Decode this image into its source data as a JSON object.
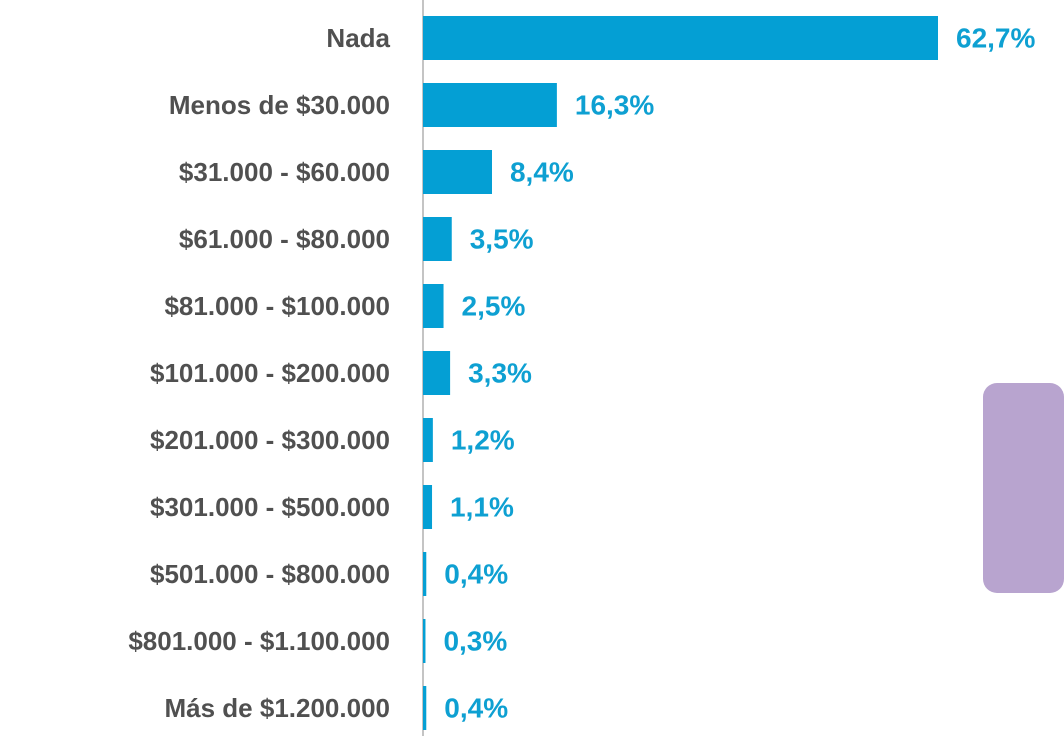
{
  "chart_data": {
    "type": "bar",
    "orientation": "horizontal",
    "color": "#049fd4",
    "categories": [
      "Nada",
      "Menos de $30.000",
      "$31.000 - $60.000",
      "$61.000 - $80.000",
      "$81.000 - $100.000",
      "$101.000 - $200.000",
      "$201.000 - $300.000",
      "$301.000 - $500.000",
      "$501.000 - $800.000",
      "$801.000 - $1.100.000",
      "Más de $1.200.000"
    ],
    "values": [
      62.7,
      16.3,
      8.4,
      3.5,
      2.5,
      3.3,
      1.2,
      1.1,
      0.4,
      0.3,
      0.4
    ],
    "value_labels": [
      "62,7%",
      "16,3%",
      "8,4%",
      "3,5%",
      "2,5%",
      "3,3%",
      "1,2%",
      "1,1%",
      "0,4%",
      "0,3%",
      "0,4%"
    ]
  }
}
